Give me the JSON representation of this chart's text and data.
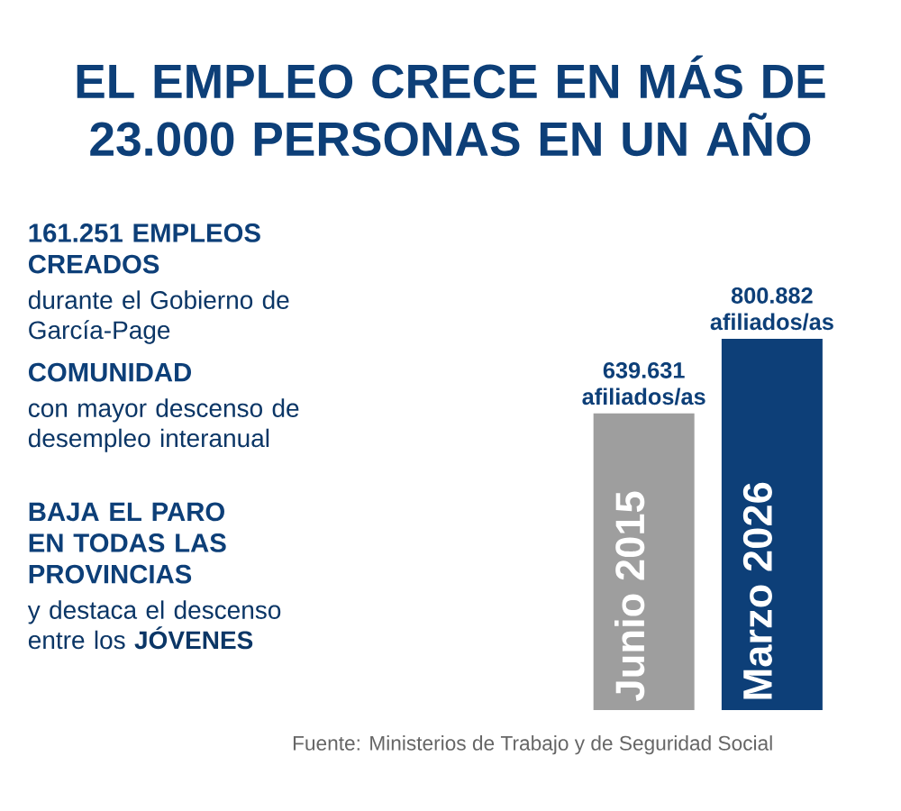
{
  "chart_data": {
    "type": "bar",
    "title": "EL EMPLEO CRECE EN MÁS DE 23.000 PERSONAS EN UN AÑO",
    "categories": [
      "Junio 2015",
      "Marzo 2026"
    ],
    "values": [
      639631,
      800882
    ],
    "colors": [
      "#9e9e9e",
      "#0d3f78"
    ],
    "value_labels": [
      "639.631 afiliados/as",
      "800.882 afiliados/as"
    ],
    "tick_labels": "x",
    "annotations": [
      "161.251 EMPLEOS CREADOS",
      "durante el Gobierno de García-Page",
      "COMUNIDAD",
      "con mayor descenso de desempleo interanual",
      "BAJA EL PARO EN TODAS LAS PROVINCIAS",
      "y destaca el descenso entre los **JÓVENES**",
      "Fuente: Ministerios de Trabajo y de Seguridad Social"
    ]
  }
}
